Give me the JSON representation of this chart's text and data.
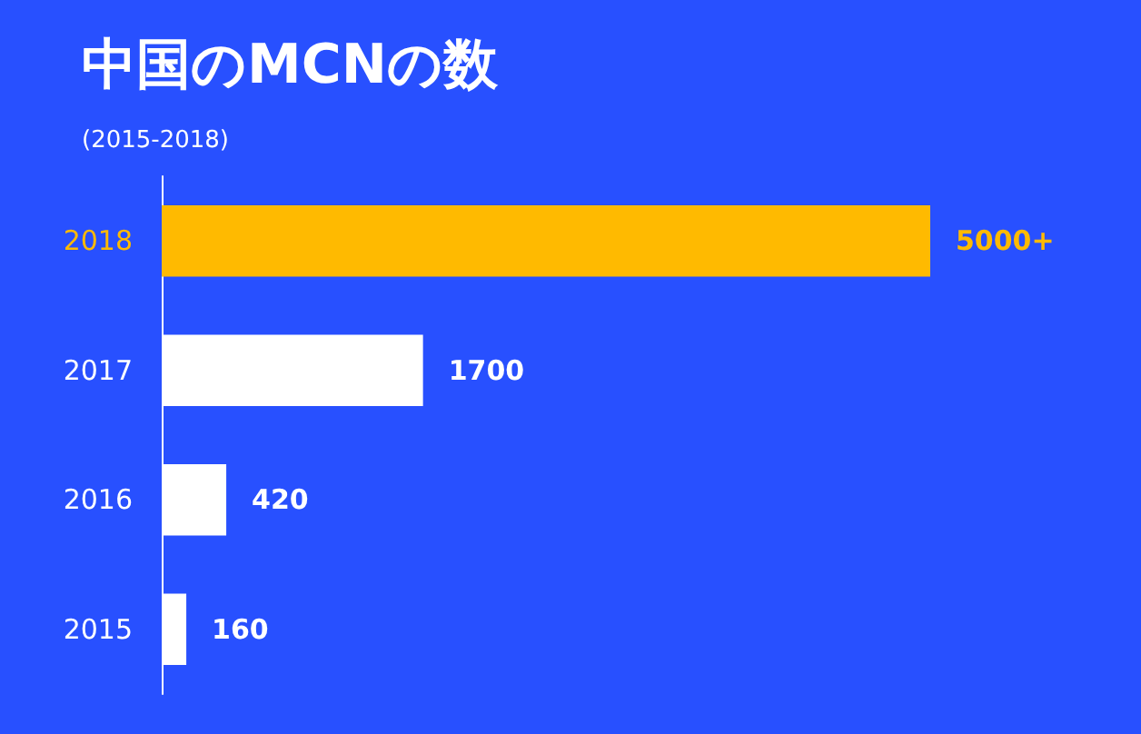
{
  "chart_data": {
    "type": "bar",
    "orientation": "horizontal",
    "title": "中国のMCNの数",
    "subtitle": "(2015-2018)",
    "categories": [
      "2018",
      "2017",
      "2016",
      "2015"
    ],
    "values": [
      5000,
      1700,
      420,
      160
    ],
    "colors": [
      "#ffba00",
      "#ffffff",
      "#ffffff",
      "#ffffff"
    ],
    "value_labels": [
      "5000+",
      "1700",
      "420",
      "160"
    ]
  }
}
